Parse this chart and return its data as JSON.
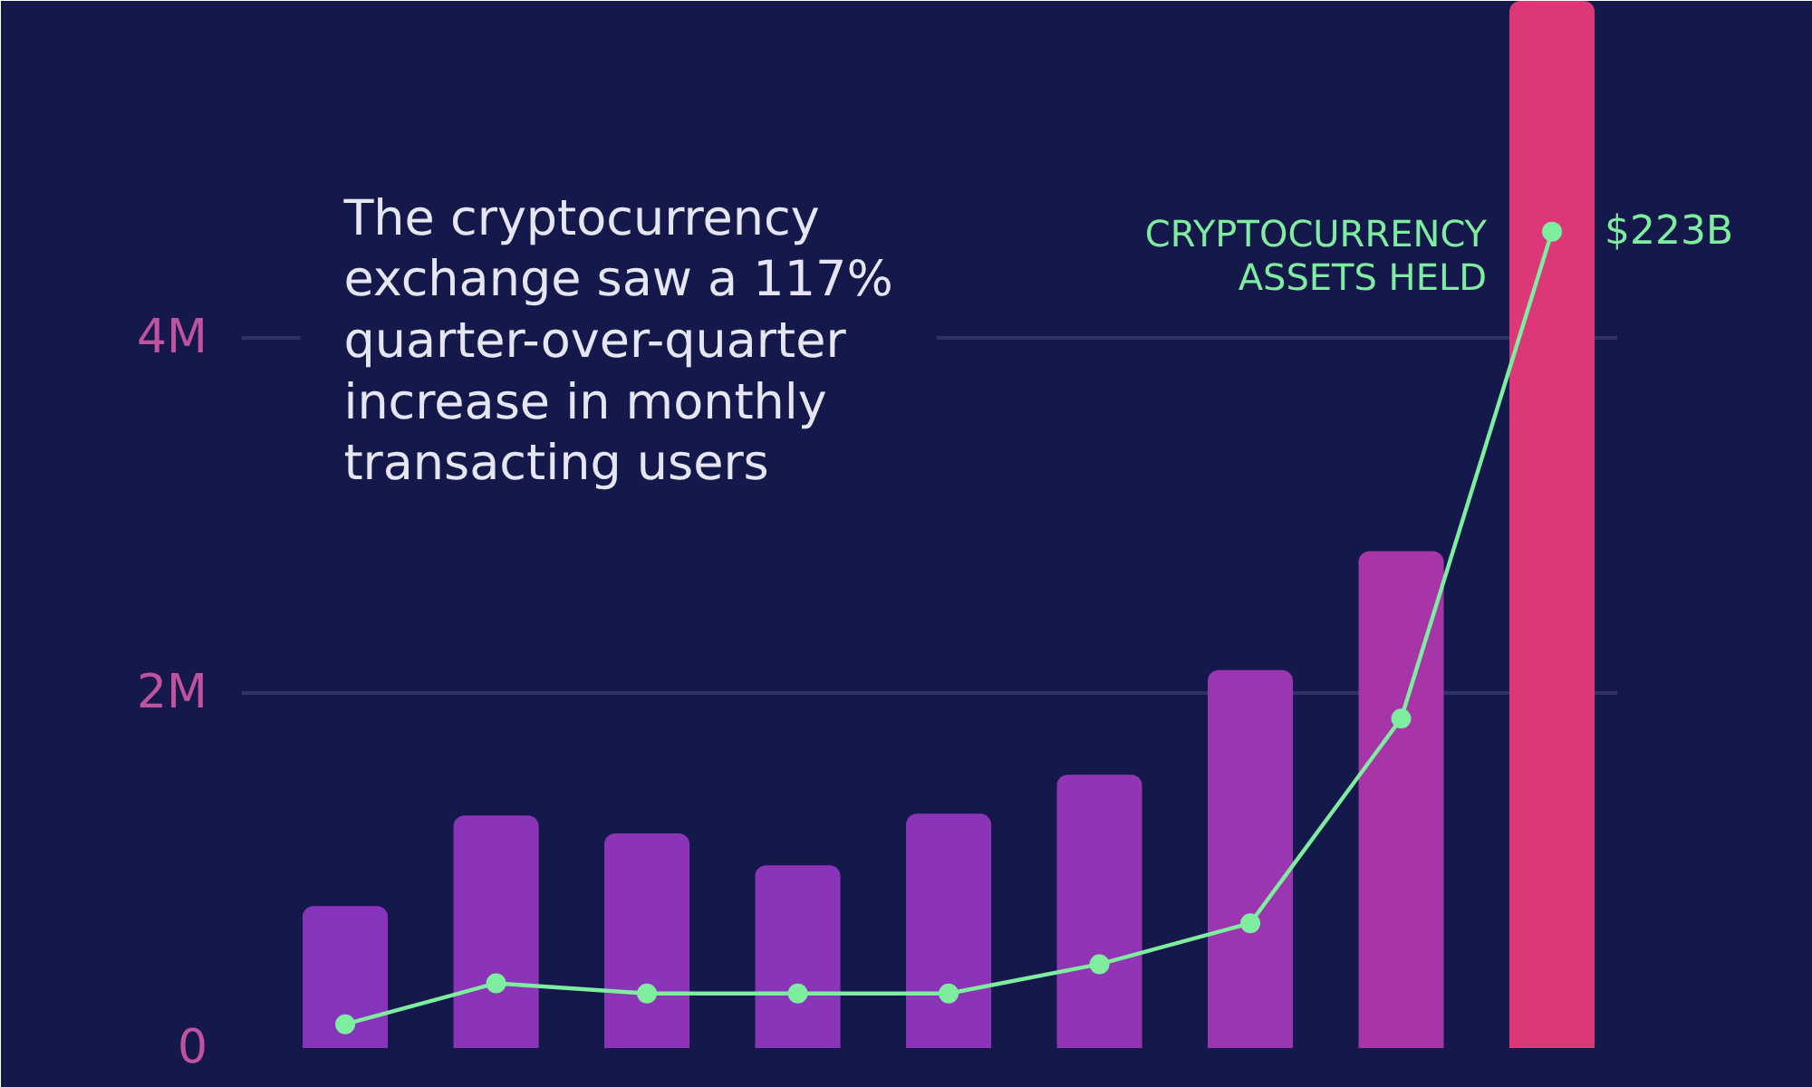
{
  "chart_data": {
    "type": "bar",
    "categories": [
      null,
      null,
      null,
      null,
      null,
      null,
      null,
      null,
      null
    ],
    "series": [
      {
        "colors": [
          "#8634bb",
          "#8c34b8",
          "#8b34b8",
          "#8934b9",
          "#8c34b8",
          "#9135b5",
          "#9b35b0",
          "#a835a8",
          "#dc3878"
        ],
        "values": [
          0.8,
          1.31,
          1.21,
          1.03,
          1.32,
          1.54,
          2.13,
          2.8,
          5.9
        ]
      },
      {
        "type": "line",
        "name": "CRYPTOCURRENCY ASSETS HELD",
        "color": "#7eed9f",
        "axis": "y2",
        "marker": "circle",
        "values": [
          6.5,
          17.7,
          14.9,
          14.9,
          14.9,
          22.9,
          34.1,
          90,
          223
        ],
        "value_labels": [
          null,
          null,
          null,
          null,
          null,
          null,
          null,
          null,
          "$223B"
        ]
      }
    ],
    "ylim": [
      0,
      5.9
    ],
    "yticks": [
      0,
      {
        "value": 2,
        "label": "2M"
      },
      {
        "value": 4,
        "label": "4M"
      }
    ],
    "y2lim": [
      0,
      286
    ],
    "grid": "y",
    "tick_labels": "y",
    "annotations": [
      "The cryptocurrency exchange saw a 117% quarter-over-quarter increase in monthly transacting users"
    ]
  }
}
